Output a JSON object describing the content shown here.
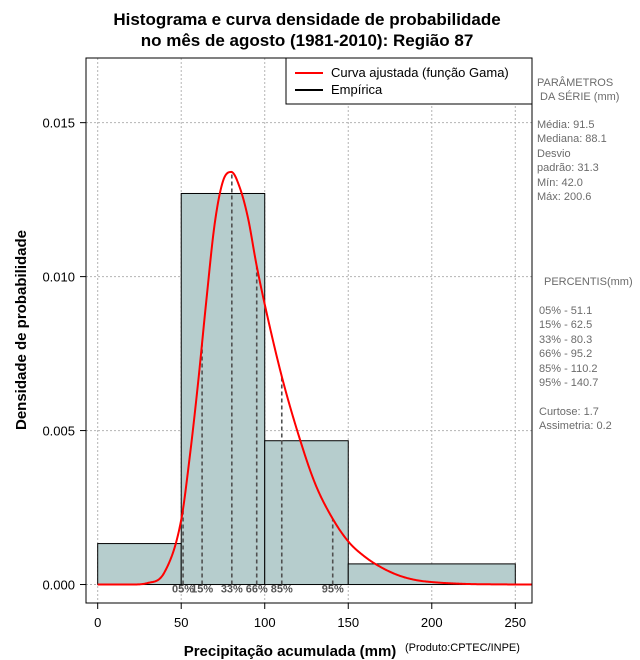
{
  "chart_data": {
    "type": "bar",
    "title": [
      "Histograma e curva densidade de probabilidade",
      "no mês de agosto (1981-2010): Região 87"
    ],
    "xlabel": "Precipitação acumulada (mm)",
    "ylabel": "Densidade de probabilidade",
    "credit": "(Produto:CPTEC/INPE)",
    "xlim": [
      -7,
      260
    ],
    "ylim": [
      -0.0006,
      0.0171
    ],
    "x_ticks": [
      0,
      50,
      100,
      150,
      200,
      250
    ],
    "x_tick_labels": [
      "0",
      "50",
      "100",
      "150",
      "200",
      "250"
    ],
    "y_ticks": [
      0.0,
      0.005,
      0.01,
      0.015
    ],
    "y_tick_labels": [
      "0.000",
      "0.005",
      "0.010",
      "0.015"
    ],
    "grid": true,
    "legend": {
      "placement": "top-right",
      "entries": [
        {
          "label": "Curva ajustada (função Gama)",
          "color": "#ff0000"
        },
        {
          "label": "Empírica",
          "color": "#000000"
        }
      ]
    },
    "histogram": {
      "bins": [
        {
          "start": 0,
          "end": 50,
          "density": 0.00133
        },
        {
          "start": 50,
          "end": 100,
          "density": 0.0127
        },
        {
          "start": 100,
          "end": 150,
          "density": 0.00467
        },
        {
          "start": 150,
          "end": 250,
          "density": 0.00067
        }
      ],
      "fill": "#b6cdcd"
    },
    "gamma_curve": {
      "name": "Curva ajustada (função Gama)",
      "color": "#ff0000",
      "x": [
        0,
        20,
        30,
        40,
        50,
        55,
        60,
        65,
        70,
        75,
        80,
        85,
        90,
        95,
        100,
        110,
        120,
        130,
        140,
        150,
        160,
        170,
        180,
        190,
        200,
        220,
        240,
        260
      ],
      "y": [
        0.0,
        0.0,
        5e-05,
        0.0004,
        0.0021,
        0.0041,
        0.0065,
        0.0092,
        0.0117,
        0.0131,
        0.0134,
        0.0129,
        0.0119,
        0.0104,
        0.0091,
        0.0068,
        0.0049,
        0.0033,
        0.0022,
        0.0014,
        0.0009,
        0.00055,
        0.0003,
        0.00015,
        8e-05,
        2e-05,
        5e-06,
        0.0
      ]
    },
    "percentile_lines": [
      {
        "label": "05%",
        "x": 51.1
      },
      {
        "label": "15%",
        "x": 62.5
      },
      {
        "label": "33%",
        "x": 80.3
      },
      {
        "label": "66%",
        "x": 95.2
      },
      {
        "label": "85%",
        "x": 110.2
      },
      {
        "label": "95%",
        "x": 140.7
      }
    ],
    "side_panel": {
      "parametros_title": [
        "PARÂMETROS",
        "DA SÉRIE (mm)"
      ],
      "parametros": [
        "Média:  91.5",
        "Mediana:  88.1",
        "Desvio",
        "padrão:  31.3",
        "Mín:  42.0",
        "Máx:  200.6"
      ],
      "percentis_title": "PERCENTIS(mm)",
      "percentis": [
        "05% -   51.1",
        "15% -   62.5",
        "33% -   80.3",
        "66% -   95.2",
        "85% -   110.2",
        "95% -   140.7"
      ],
      "extras": [
        "Curtose:  1.7",
        "Assimetria:  0.2"
      ]
    }
  }
}
